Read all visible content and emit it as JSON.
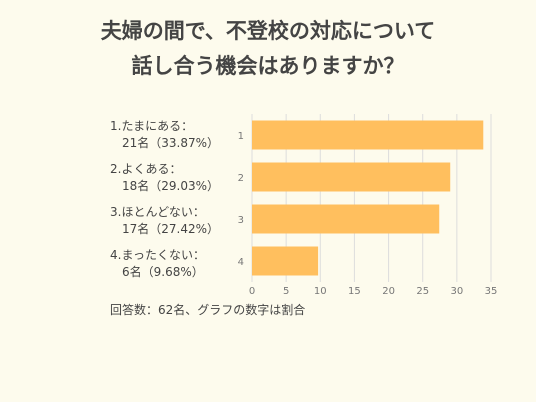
{
  "title": {
    "line1": "夫婦の間で、不登校の対応について",
    "line2": "話し合う機会はありますか？"
  },
  "labels": [
    {
      "line1": "1.たまにある：",
      "line2": "21名（33.87%）"
    },
    {
      "line1": "2.よくある：",
      "line2": "18名（29.03%）"
    },
    {
      "line1": "3.ほとんどない：",
      "line2": "17名（27.42%）"
    },
    {
      "line1": "4.まったくない：",
      "line2": "6名（9.68%）"
    }
  ],
  "note": "回答数：62名、グラフの数字は割合",
  "chart_data": {
    "type": "bar",
    "orientation": "horizontal",
    "categories": [
      "1",
      "2",
      "3",
      "4"
    ],
    "values": [
      33.87,
      29.03,
      27.42,
      9.68
    ],
    "xlim": [
      0,
      35
    ],
    "xticks": [
      0,
      5,
      10,
      15,
      20,
      25,
      30,
      35
    ],
    "grid": true,
    "bar_color": "#ffbf5e",
    "grid_color": "#dddddd"
  }
}
